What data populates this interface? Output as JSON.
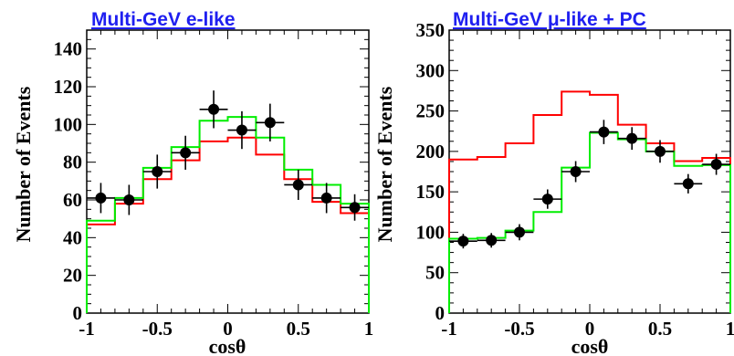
{
  "chart_data": [
    {
      "type": "line",
      "title": "Multi-GeV e-like",
      "xlabel": "cosθ",
      "ylabel": "Number of Events",
      "xlim": [
        -1,
        1
      ],
      "ylim": [
        0,
        150
      ],
      "xticks": [
        "-1",
        "-0.5",
        "0",
        "0.5",
        "1"
      ],
      "xtick_values": [
        -1,
        -0.5,
        0,
        0.5,
        1
      ],
      "yticks": [
        "0",
        "20",
        "40",
        "60",
        "80",
        "100",
        "120",
        "140"
      ],
      "ytick_values": [
        0,
        20,
        40,
        60,
        80,
        100,
        120,
        140
      ],
      "bin_edges": [
        -1,
        -0.8,
        -0.6,
        -0.4,
        -0.2,
        0,
        0.2,
        0.4,
        0.6,
        0.8,
        1
      ],
      "series": [
        {
          "kind": "hist",
          "color": "#ff0000",
          "values": [
            47,
            58,
            71,
            81,
            91,
            93,
            84,
            71,
            59,
            53
          ]
        },
        {
          "kind": "hist",
          "color": "#00ee00",
          "values": [
            49,
            61,
            77,
            88,
            102,
            104,
            93,
            76,
            68,
            58
          ]
        },
        {
          "kind": "points",
          "color": "#000000",
          "x": [
            -0.9,
            -0.7,
            -0.5,
            -0.3,
            -0.1,
            0.1,
            0.3,
            0.5,
            0.7,
            0.9
          ],
          "y": [
            61,
            60,
            75,
            85,
            108,
            97,
            101,
            68,
            61,
            56
          ],
          "err": [
            8,
            8,
            9,
            9,
            10,
            10,
            10,
            8,
            8,
            7
          ]
        }
      ]
    },
    {
      "type": "line",
      "title": "Multi-GeV μ-like + PC",
      "xlabel": "cosθ",
      "ylabel": "Number of Events",
      "xlim": [
        -1,
        1
      ],
      "ylim": [
        0,
        350
      ],
      "xticks": [
        "-1",
        "-0.5",
        "0",
        "0.5",
        "1"
      ],
      "xtick_values": [
        -1,
        -0.5,
        0,
        0.5,
        1
      ],
      "yticks": [
        "0",
        "50",
        "100",
        "150",
        "200",
        "250",
        "300",
        "350"
      ],
      "ytick_values": [
        0,
        50,
        100,
        150,
        200,
        250,
        300,
        350
      ],
      "bin_edges": [
        -1,
        -0.8,
        -0.6,
        -0.4,
        -0.2,
        0,
        0.2,
        0.4,
        0.6,
        0.8,
        1
      ],
      "series": [
        {
          "kind": "hist",
          "color": "#ff0000",
          "values": [
            190,
            193,
            210,
            245,
            274,
            270,
            233,
            210,
            188,
            192
          ]
        },
        {
          "kind": "hist",
          "color": "#00ee00",
          "values": [
            92,
            93,
            102,
            125,
            180,
            223,
            215,
            200,
            182,
            183
          ]
        },
        {
          "kind": "points",
          "color": "#000000",
          "x": [
            -0.9,
            -0.7,
            -0.5,
            -0.3,
            -0.1,
            0.1,
            0.3,
            0.5,
            0.7,
            0.9
          ],
          "y": [
            89,
            90,
            100,
            141,
            175,
            224,
            216,
            200,
            160,
            184
          ],
          "err": [
            9,
            9,
            10,
            12,
            13,
            15,
            14,
            14,
            12,
            13
          ]
        }
      ]
    }
  ]
}
